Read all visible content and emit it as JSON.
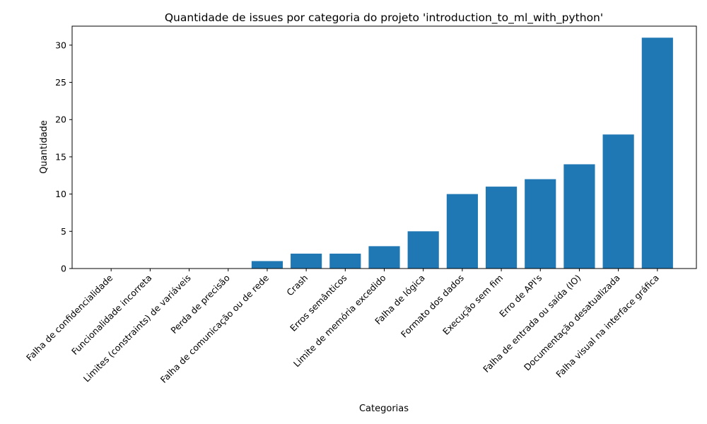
{
  "chart_data": {
    "type": "bar",
    "title": "Quantidade de issues por categoria do projeto 'introduction_to_ml_with_python'",
    "xlabel": "Categorias",
    "ylabel": "Quantidade",
    "categories": [
      "Falha de confidencialidade",
      "Funcionalidade incorreta",
      "Limites (constraints) de variáveis",
      "Perda de precisão",
      "Falha de comunicação ou de rede",
      "Crash",
      "Erros semânticos",
      "Limite de memória excedido",
      "Falha de lógica",
      "Formato dos dados",
      "Execução sem fim",
      "Erro de API's",
      "Falha de entrada ou saída (IO)",
      "Documentação desatualizada",
      "Falha visual na interface gráfica"
    ],
    "values": [
      0,
      0,
      0,
      0,
      1,
      2,
      2,
      3,
      5,
      10,
      11,
      12,
      14,
      18,
      31
    ],
    "ylim": [
      0,
      32.55
    ],
    "yticks": [
      0,
      5,
      10,
      15,
      20,
      25,
      30
    ],
    "grid": false,
    "bar_color": "#1f77b4"
  }
}
